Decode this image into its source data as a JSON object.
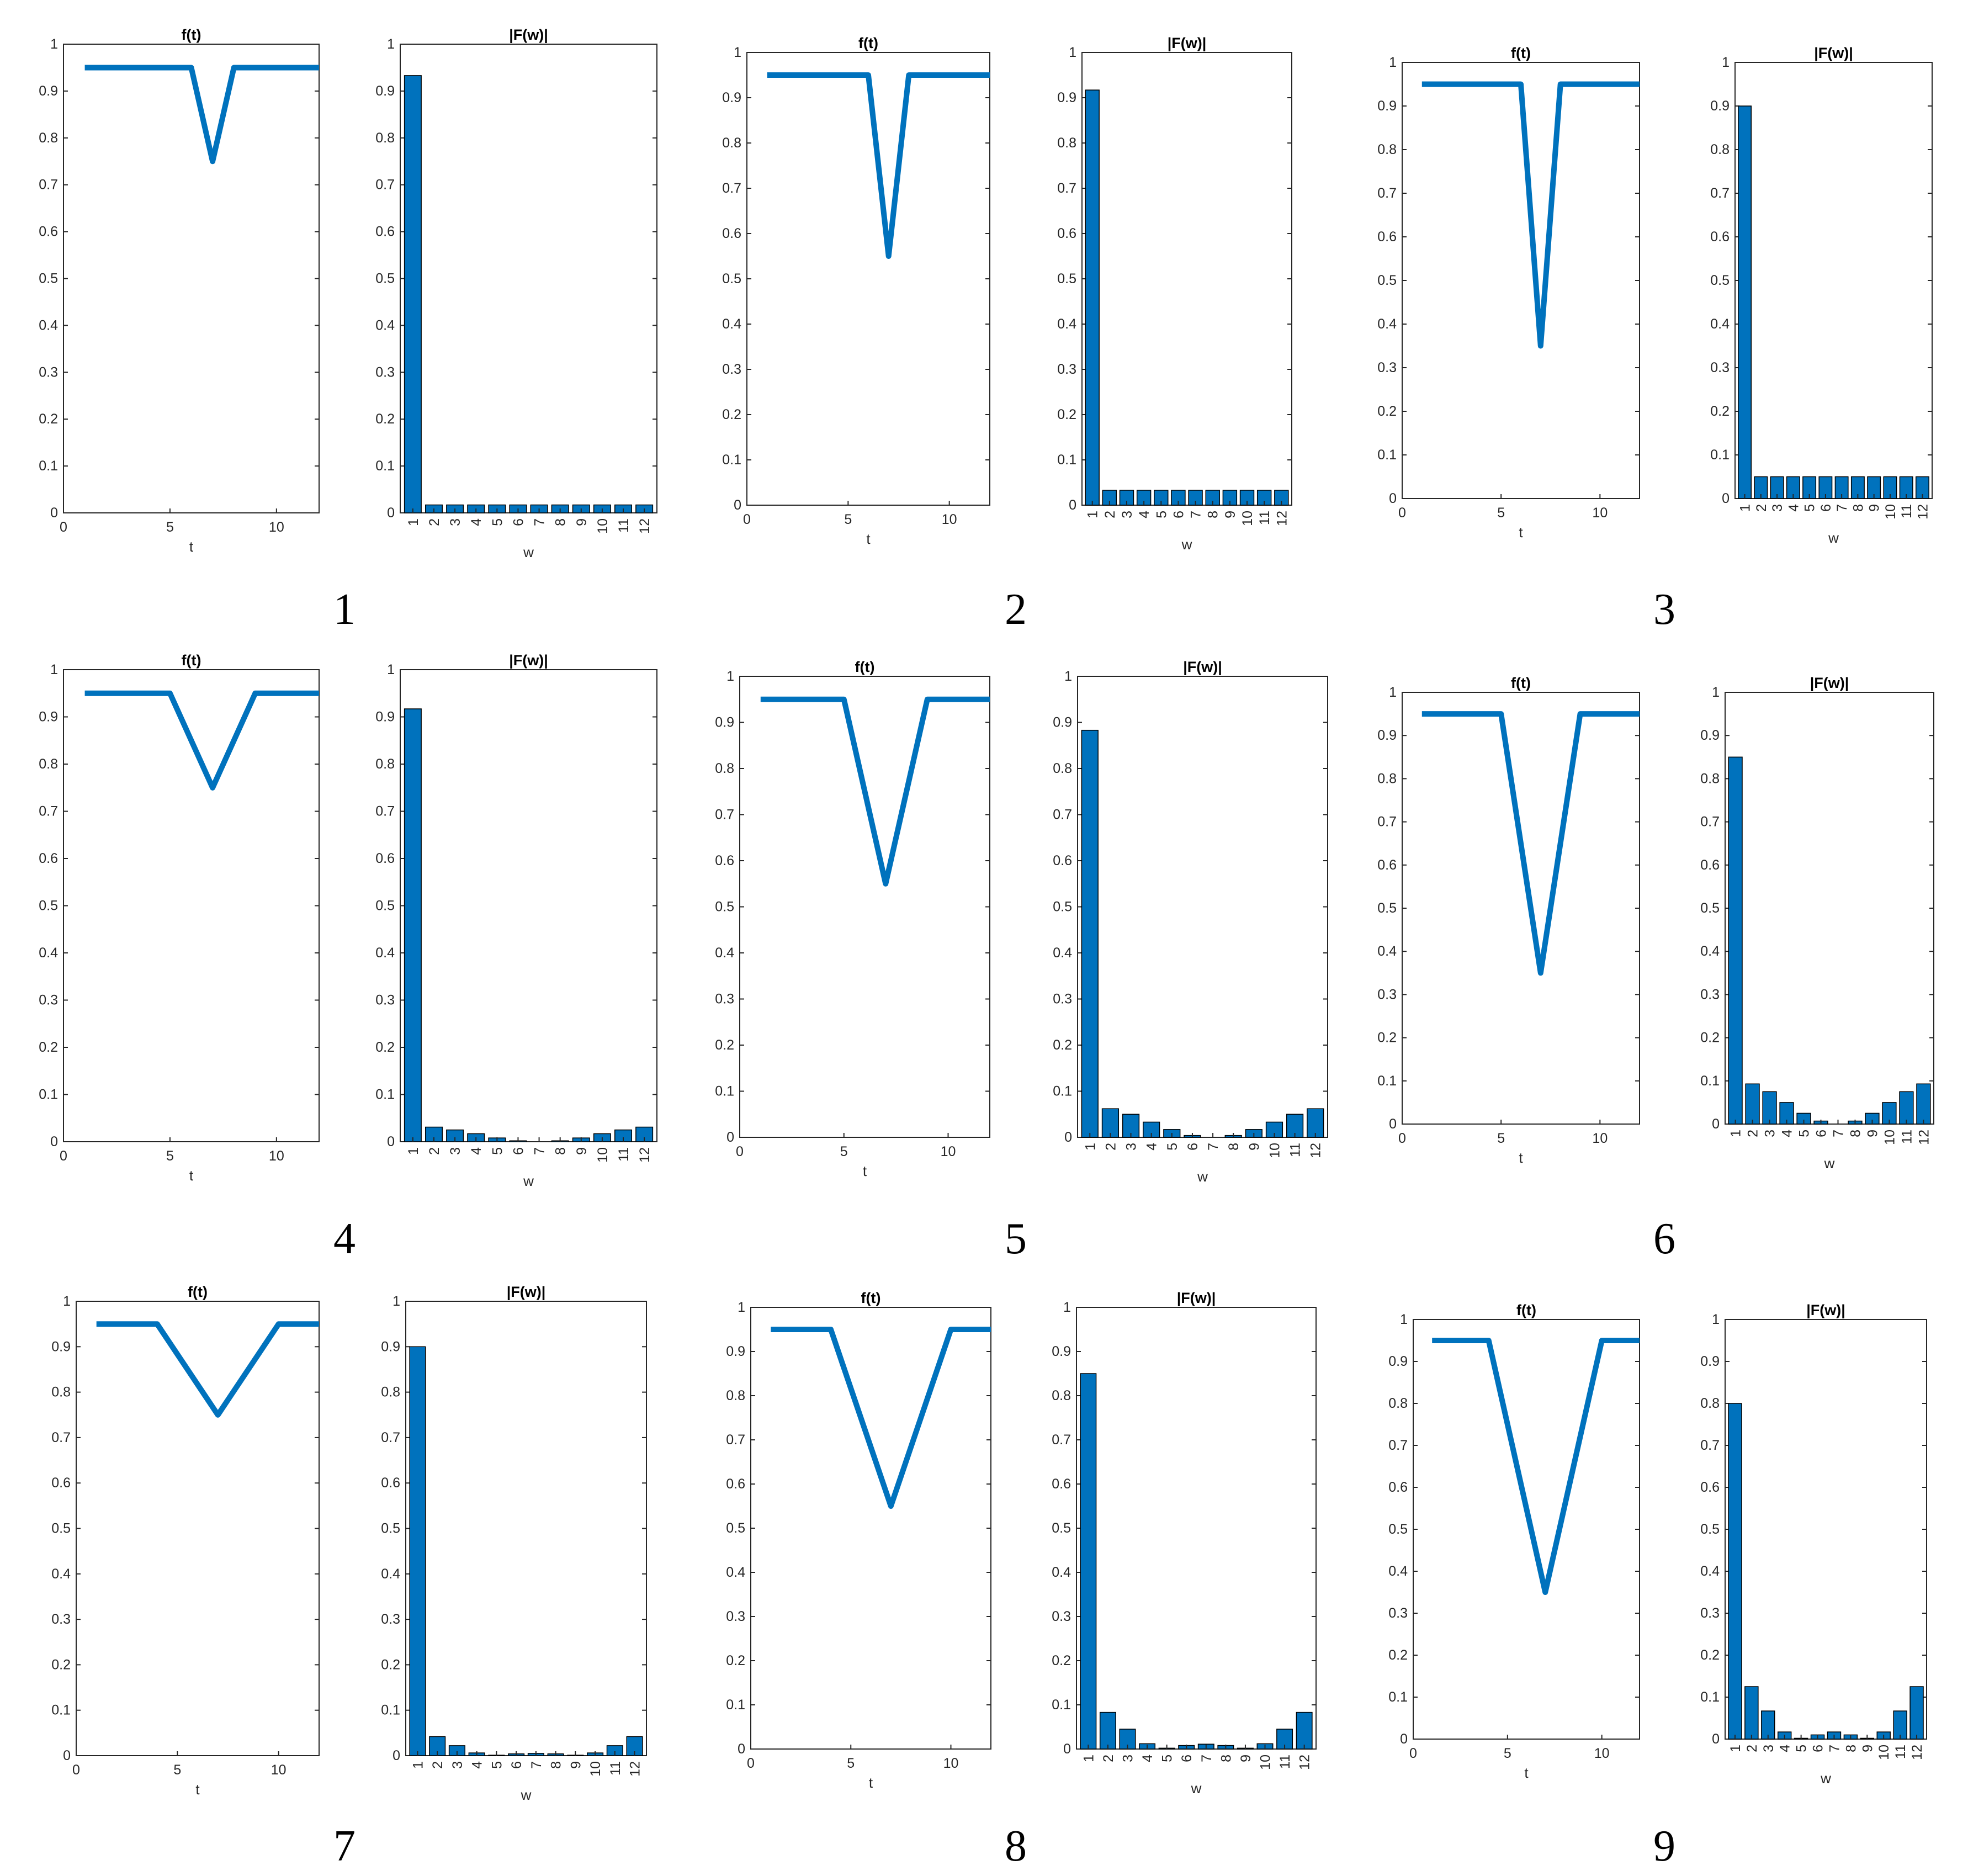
{
  "figure": {
    "chart_data": [
      {
        "panel": "1",
        "type": "line",
        "title": "f(t)",
        "xlabel": "t",
        "xticks": [
          0,
          5,
          10
        ],
        "yticks": [
          "0",
          "0.1",
          "0.2",
          "0.3",
          "0.4",
          "0.5",
          "0.6",
          "0.7",
          "0.8",
          "0.9",
          "1"
        ],
        "xlim": [
          0,
          12
        ],
        "ylim": [
          0,
          1
        ],
        "series": [
          {
            "x": [
              1,
              6,
              7,
              8,
              12
            ],
            "y": [
              0.95,
              0.95,
              0.75,
              0.95,
              0.95
            ]
          }
        ]
      },
      {
        "panel": "1",
        "type": "bar",
        "title": "|F(w)|",
        "xlabel": "w",
        "categories": [
          "1",
          "2",
          "3",
          "4",
          "5",
          "6",
          "7",
          "8",
          "9",
          "10",
          "11",
          "12"
        ],
        "yticks": [
          "0",
          "0.1",
          "0.2",
          "0.3",
          "0.4",
          "0.5",
          "0.6",
          "0.7",
          "0.8",
          "0.9",
          "1"
        ],
        "ylim": [
          0,
          1
        ],
        "values": [
          0.933,
          0.017,
          0.017,
          0.017,
          0.017,
          0.017,
          0.017,
          0.017,
          0.017,
          0.017,
          0.017,
          0.017
        ]
      },
      {
        "panel": "2",
        "type": "line",
        "title": "f(t)",
        "xlabel": "t",
        "xticks": [
          0,
          5,
          10
        ],
        "yticks": [
          "0",
          "0.1",
          "0.2",
          "0.3",
          "0.4",
          "0.5",
          "0.6",
          "0.7",
          "0.8",
          "0.9",
          "1"
        ],
        "xlim": [
          0,
          12
        ],
        "ylim": [
          0,
          1
        ],
        "series": [
          {
            "x": [
              1,
              6,
              7,
              8,
              12
            ],
            "y": [
              0.95,
              0.95,
              0.55,
              0.95,
              0.95
            ]
          }
        ]
      },
      {
        "panel": "2",
        "type": "bar",
        "title": "|F(w)|",
        "xlabel": "w",
        "categories": [
          "1",
          "2",
          "3",
          "4",
          "5",
          "6",
          "7",
          "8",
          "9",
          "10",
          "11",
          "12"
        ],
        "yticks": [
          "0",
          "0.1",
          "0.2",
          "0.3",
          "0.4",
          "0.5",
          "0.6",
          "0.7",
          "0.8",
          "0.9",
          "1"
        ],
        "ylim": [
          0,
          1
        ],
        "values": [
          0.917,
          0.033,
          0.033,
          0.033,
          0.033,
          0.033,
          0.033,
          0.033,
          0.033,
          0.033,
          0.033,
          0.033
        ]
      },
      {
        "panel": "3",
        "type": "line",
        "title": "f(t)",
        "xlabel": "t",
        "xticks": [
          0,
          5,
          10
        ],
        "yticks": [
          "0",
          "0.1",
          "0.2",
          "0.3",
          "0.4",
          "0.5",
          "0.6",
          "0.7",
          "0.8",
          "0.9",
          "1"
        ],
        "xlim": [
          0,
          12
        ],
        "ylim": [
          0,
          1
        ],
        "series": [
          {
            "x": [
              1,
              6,
              7,
              8,
              12
            ],
            "y": [
              0.95,
              0.95,
              0.35,
              0.95,
              0.95
            ]
          }
        ]
      },
      {
        "panel": "3",
        "type": "bar",
        "title": "|F(w)|",
        "xlabel": "w",
        "categories": [
          "1",
          "2",
          "3",
          "4",
          "5",
          "6",
          "7",
          "8",
          "9",
          "10",
          "11",
          "12"
        ],
        "yticks": [
          "0",
          "0.1",
          "0.2",
          "0.3",
          "0.4",
          "0.5",
          "0.6",
          "0.7",
          "0.8",
          "0.9",
          "1"
        ],
        "ylim": [
          0,
          1
        ],
        "values": [
          0.9,
          0.05,
          0.05,
          0.05,
          0.05,
          0.05,
          0.05,
          0.05,
          0.05,
          0.05,
          0.05,
          0.05
        ]
      },
      {
        "panel": "4",
        "type": "line",
        "title": "f(t)",
        "xlabel": "t",
        "xticks": [
          0,
          5,
          10
        ],
        "yticks": [
          "0",
          "0.1",
          "0.2",
          "0.3",
          "0.4",
          "0.5",
          "0.6",
          "0.7",
          "0.8",
          "0.9",
          "1"
        ],
        "xlim": [
          0,
          12
        ],
        "ylim": [
          0,
          1
        ],
        "series": [
          {
            "x": [
              1,
              5,
              7,
              9,
              12
            ],
            "y": [
              0.95,
              0.95,
              0.75,
              0.95,
              0.95
            ]
          }
        ]
      },
      {
        "panel": "4",
        "type": "bar",
        "title": "|F(w)|",
        "xlabel": "w",
        "categories": [
          "1",
          "2",
          "3",
          "4",
          "5",
          "6",
          "7",
          "8",
          "9",
          "10",
          "11",
          "12"
        ],
        "yticks": [
          "0",
          "0.1",
          "0.2",
          "0.3",
          "0.4",
          "0.5",
          "0.6",
          "0.7",
          "0.8",
          "0.9",
          "1"
        ],
        "ylim": [
          0,
          1
        ],
        "values": [
          0.917,
          0.031,
          0.025,
          0.017,
          0.008,
          0.002,
          0,
          0.002,
          0.008,
          0.017,
          0.025,
          0.031
        ]
      },
      {
        "panel": "5",
        "type": "line",
        "title": "f(t)",
        "xlabel": "t",
        "xticks": [
          0,
          5,
          10
        ],
        "yticks": [
          "0",
          "0.1",
          "0.2",
          "0.3",
          "0.4",
          "0.5",
          "0.6",
          "0.7",
          "0.8",
          "0.9",
          "1"
        ],
        "xlim": [
          0,
          12
        ],
        "ylim": [
          0,
          1
        ],
        "series": [
          {
            "x": [
              1,
              5,
              7,
              9,
              12
            ],
            "y": [
              0.95,
              0.95,
              0.55,
              0.95,
              0.95
            ]
          }
        ]
      },
      {
        "panel": "5",
        "type": "bar",
        "title": "|F(w)|",
        "xlabel": "w",
        "categories": [
          "1",
          "2",
          "3",
          "4",
          "5",
          "6",
          "7",
          "8",
          "9",
          "10",
          "11",
          "12"
        ],
        "yticks": [
          "0",
          "0.1",
          "0.2",
          "0.3",
          "0.4",
          "0.5",
          "0.6",
          "0.7",
          "0.8",
          "0.9",
          "1"
        ],
        "ylim": [
          0,
          1
        ],
        "values": [
          0.883,
          0.062,
          0.05,
          0.033,
          0.017,
          0.004,
          0,
          0.004,
          0.017,
          0.033,
          0.05,
          0.062
        ]
      },
      {
        "panel": "6",
        "type": "line",
        "title": "f(t)",
        "xlabel": "t",
        "xticks": [
          0,
          5,
          10
        ],
        "yticks": [
          "0",
          "0.1",
          "0.2",
          "0.3",
          "0.4",
          "0.5",
          "0.6",
          "0.7",
          "0.8",
          "0.9",
          "1"
        ],
        "xlim": [
          0,
          12
        ],
        "ylim": [
          0,
          1
        ],
        "series": [
          {
            "x": [
              1,
              5,
              7,
              9,
              12
            ],
            "y": [
              0.95,
              0.95,
              0.35,
              0.95,
              0.95
            ]
          }
        ]
      },
      {
        "panel": "6",
        "type": "bar",
        "title": "|F(w)|",
        "xlabel": "w",
        "categories": [
          "1",
          "2",
          "3",
          "4",
          "5",
          "6",
          "7",
          "8",
          "9",
          "10",
          "11",
          "12"
        ],
        "yticks": [
          "0",
          "0.1",
          "0.2",
          "0.3",
          "0.4",
          "0.5",
          "0.6",
          "0.7",
          "0.8",
          "0.9",
          "1"
        ],
        "ylim": [
          0,
          1
        ],
        "values": [
          0.85,
          0.093,
          0.075,
          0.05,
          0.025,
          0.007,
          0,
          0.007,
          0.025,
          0.05,
          0.075,
          0.093
        ]
      },
      {
        "panel": "7",
        "type": "line",
        "title": "f(t)",
        "xlabel": "t",
        "xticks": [
          0,
          5,
          10
        ],
        "yticks": [
          "0",
          "0.1",
          "0.2",
          "0.3",
          "0.4",
          "0.5",
          "0.6",
          "0.7",
          "0.8",
          "0.9",
          "1"
        ],
        "xlim": [
          0,
          12
        ],
        "ylim": [
          0,
          1
        ],
        "series": [
          {
            "x": [
              1,
              4,
              7,
              10,
              12
            ],
            "y": [
              0.95,
              0.95,
              0.75,
              0.95,
              0.95
            ]
          }
        ]
      },
      {
        "panel": "7",
        "type": "bar",
        "title": "|F(w)|",
        "xlabel": "w",
        "categories": [
          "1",
          "2",
          "3",
          "4",
          "5",
          "6",
          "7",
          "8",
          "9",
          "10",
          "11",
          "12"
        ],
        "yticks": [
          "0",
          "0.1",
          "0.2",
          "0.3",
          "0.4",
          "0.5",
          "0.6",
          "0.7",
          "0.8",
          "0.9",
          "1"
        ],
        "ylim": [
          0,
          1
        ],
        "values": [
          0.9,
          0.042,
          0.022,
          0.006,
          0.001,
          0.004,
          0.005,
          0.004,
          0.001,
          0.006,
          0.022,
          0.042
        ]
      },
      {
        "panel": "8",
        "type": "line",
        "title": "f(t)",
        "xlabel": "t",
        "xticks": [
          0,
          5,
          10
        ],
        "yticks": [
          "0",
          "0.1",
          "0.2",
          "0.3",
          "0.4",
          "0.5",
          "0.6",
          "0.7",
          "0.8",
          "0.9",
          "1"
        ],
        "xlim": [
          0,
          12
        ],
        "ylim": [
          0,
          1
        ],
        "series": [
          {
            "x": [
              1,
              4,
              7,
              10,
              12
            ],
            "y": [
              0.95,
              0.95,
              0.55,
              0.95,
              0.95
            ]
          }
        ]
      },
      {
        "panel": "8",
        "type": "bar",
        "title": "|F(w)|",
        "xlabel": "w",
        "categories": [
          "1",
          "2",
          "3",
          "4",
          "5",
          "6",
          "7",
          "8",
          "9",
          "10",
          "11",
          "12"
        ],
        "yticks": [
          "0",
          "0.1",
          "0.2",
          "0.3",
          "0.4",
          "0.5",
          "0.6",
          "0.7",
          "0.8",
          "0.9",
          "1"
        ],
        "ylim": [
          0,
          1
        ],
        "values": [
          0.85,
          0.083,
          0.045,
          0.012,
          0.002,
          0.008,
          0.011,
          0.008,
          0.002,
          0.012,
          0.045,
          0.083
        ]
      },
      {
        "panel": "9",
        "type": "line",
        "title": "f(t)",
        "xlabel": "t",
        "xticks": [
          0,
          5,
          10
        ],
        "yticks": [
          "0",
          "0.1",
          "0.2",
          "0.3",
          "0.4",
          "0.5",
          "0.6",
          "0.7",
          "0.8",
          "0.9",
          "1"
        ],
        "xlim": [
          0,
          12
        ],
        "ylim": [
          0,
          1
        ],
        "series": [
          {
            "x": [
              1,
              4,
              7,
              10,
              12
            ],
            "y": [
              0.95,
              0.95,
              0.35,
              0.95,
              0.95
            ]
          }
        ]
      },
      {
        "panel": "9",
        "type": "bar",
        "title": "|F(w)|",
        "xlabel": "w",
        "categories": [
          "1",
          "2",
          "3",
          "4",
          "5",
          "6",
          "7",
          "8",
          "9",
          "10",
          "11",
          "12"
        ],
        "yticks": [
          "0",
          "0.1",
          "0.2",
          "0.3",
          "0.4",
          "0.5",
          "0.6",
          "0.7",
          "0.8",
          "0.9",
          "1"
        ],
        "ylim": [
          0,
          1
        ],
        "values": [
          0.8,
          0.125,
          0.067,
          0.017,
          0.002,
          0.01,
          0.017,
          0.01,
          0.002,
          0.017,
          0.067,
          0.125
        ]
      }
    ],
    "panel_numbers": [
      "1",
      "2",
      "3",
      "4",
      "5",
      "6",
      "7",
      "8",
      "9"
    ],
    "colors": {
      "series": "#0072BD",
      "axis": "#262626",
      "background": "#ffffff"
    }
  }
}
